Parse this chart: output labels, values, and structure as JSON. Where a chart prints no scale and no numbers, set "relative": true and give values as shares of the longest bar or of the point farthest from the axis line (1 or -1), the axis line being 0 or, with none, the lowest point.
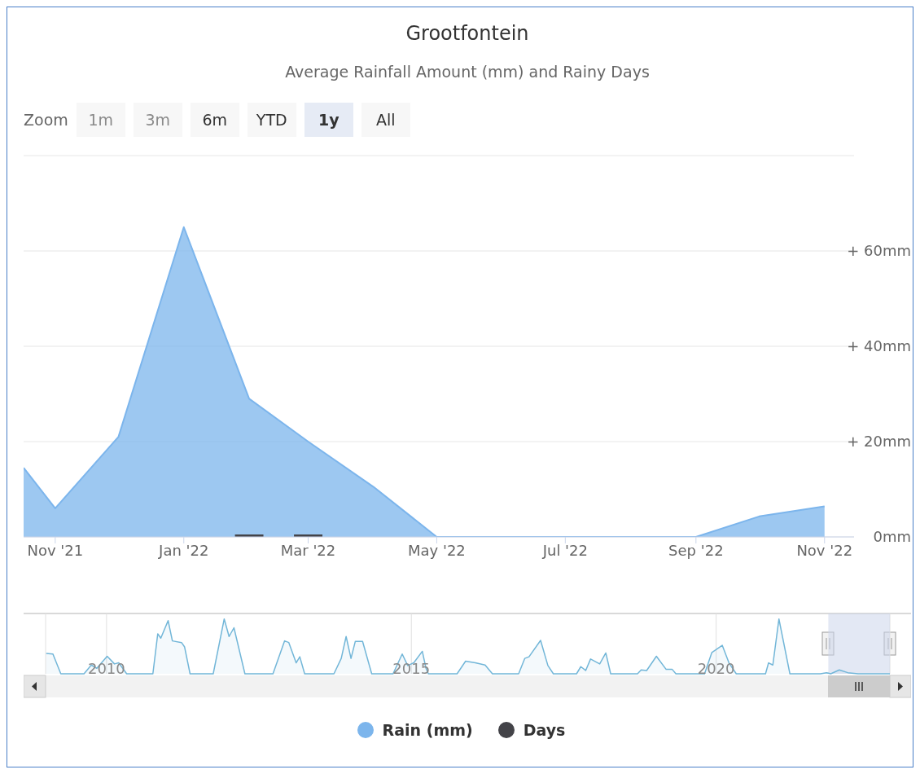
{
  "chart_data": [
    {
      "type": "area",
      "title": "Grootfontein",
      "subtitle": "Average Rainfall Amount (mm) and Rainy Days",
      "annotations": [
        "Zoom",
        "1m",
        "3m",
        "6m",
        "YTD",
        "1y",
        "All"
      ],
      "x": [
        "2021-10-17",
        "2021-11-01",
        "2021-12-01",
        "2022-01-01",
        "2022-02-01",
        "2022-03-01",
        "2022-04-01",
        "2022-05-01",
        "2022-06-01",
        "2022-07-01",
        "2022-08-01",
        "2022-09-01",
        "2022-10-01",
        "2022-11-01"
      ],
      "series": [
        {
          "name": "Rain (mm)",
          "color": "#7cb5ec",
          "values": [
            14.5,
            6,
            21,
            65,
            29,
            20,
            10.5,
            0,
            0,
            0,
            0,
            0,
            4.3,
            6.4
          ]
        },
        {
          "name": "Days",
          "type": "bar",
          "color": "#434348",
          "values": [
            null,
            null,
            null,
            null,
            0.5,
            0.5,
            null,
            null,
            null,
            null,
            null,
            null,
            null,
            null
          ]
        }
      ],
      "xlim": [
        "2021-10-17",
        "2022-11-15"
      ],
      "xticks": [
        {
          "value": "2021-11-01",
          "label": "Nov '21"
        },
        {
          "value": "2022-01-01",
          "label": "Jan '22"
        },
        {
          "value": "2022-03-01",
          "label": "Mar '22"
        },
        {
          "value": "2022-05-01",
          "label": "May '22"
        },
        {
          "value": "2022-07-01",
          "label": "Jul '22"
        },
        {
          "value": "2022-09-01",
          "label": "Sep '22"
        },
        {
          "value": "2022-11-01",
          "label": "Nov '22"
        }
      ],
      "ylim": [
        0,
        80
      ],
      "yticks": [
        {
          "value": 0,
          "label": "0mm"
        },
        {
          "value": 20,
          "label": "+ 20mm"
        },
        {
          "value": 40,
          "label": "+ 40mm"
        },
        {
          "value": 60,
          "label": "+ 60mm"
        },
        {
          "value": 80,
          "label": null
        }
      ],
      "grid": "y",
      "legend": "bottom"
    },
    {
      "type": "area",
      "relative": true,
      "color": "#72b6d8",
      "x": [
        2009.01,
        2009.12,
        2009.25,
        2009.63,
        2009.75,
        2009.84,
        2010.01,
        2010.13,
        2010.2,
        2010.33,
        2010.76,
        2010.84,
        2010.89,
        2011.01,
        2011.08,
        2011.23,
        2011.28,
        2011.37,
        2011.75,
        2011.93,
        2012.01,
        2012.09,
        2012.27,
        2012.73,
        2012.92,
        2012.99,
        2013.11,
        2013.17,
        2013.25,
        2013.73,
        2013.85,
        2013.93,
        2014.01,
        2014.08,
        2014.2,
        2014.35,
        2014.7,
        2014.85,
        2014.94,
        2015.04,
        2015.18,
        2015.24,
        2015.28,
        2015.75,
        2015.89,
        2016.05,
        2016.21,
        2016.33,
        2016.76,
        2016.86,
        2016.93,
        2017.12,
        2017.24,
        2017.33,
        2017.71,
        2017.78,
        2017.86,
        2017.94,
        2018.09,
        2018.19,
        2018.27,
        2018.71,
        2018.77,
        2018.86,
        2019.02,
        2019.18,
        2019.28,
        2019.34,
        2019.81,
        2019.93,
        2020.1,
        2020.21,
        2020.33,
        2020.81,
        2020.86,
        2020.93,
        2021.03,
        2021.21,
        2021.71,
        2021.81,
        2021.88,
        2022.02,
        2022.16,
        2022.33,
        2022.85
      ],
      "values": [
        0.37,
        0.36,
        0,
        0,
        0.16,
        0.1,
        0.32,
        0.18,
        0.2,
        0,
        0,
        0.73,
        0.65,
        0.97,
        0.6,
        0.57,
        0.49,
        0,
        0,
        1,
        0.68,
        0.84,
        0,
        0,
        0.6,
        0.57,
        0.2,
        0.31,
        0,
        0,
        0.28,
        0.68,
        0.28,
        0.59,
        0.59,
        0,
        0,
        0.36,
        0.15,
        0.2,
        0.41,
        0.1,
        0,
        0,
        0.23,
        0.2,
        0.16,
        0,
        0,
        0.28,
        0.31,
        0.61,
        0.15,
        0,
        0,
        0.13,
        0.06,
        0.27,
        0.18,
        0.38,
        0,
        0,
        0.07,
        0.06,
        0.32,
        0.08,
        0.08,
        0,
        0,
        0.39,
        0.52,
        0.2,
        0,
        0,
        0.2,
        0.16,
        1,
        0,
        0,
        0.02,
        0,
        0.07,
        0.02,
        0,
        0
      ],
      "xlim": [
        2009,
        2022.85
      ],
      "xticks": [
        2010,
        2015,
        2020
      ],
      "grid": "x",
      "bands": [
        {
          "axis": "x",
          "from": 2021.84,
          "to": 2022.85,
          "color": "#ccd6eb"
        }
      ]
    }
  ]
}
